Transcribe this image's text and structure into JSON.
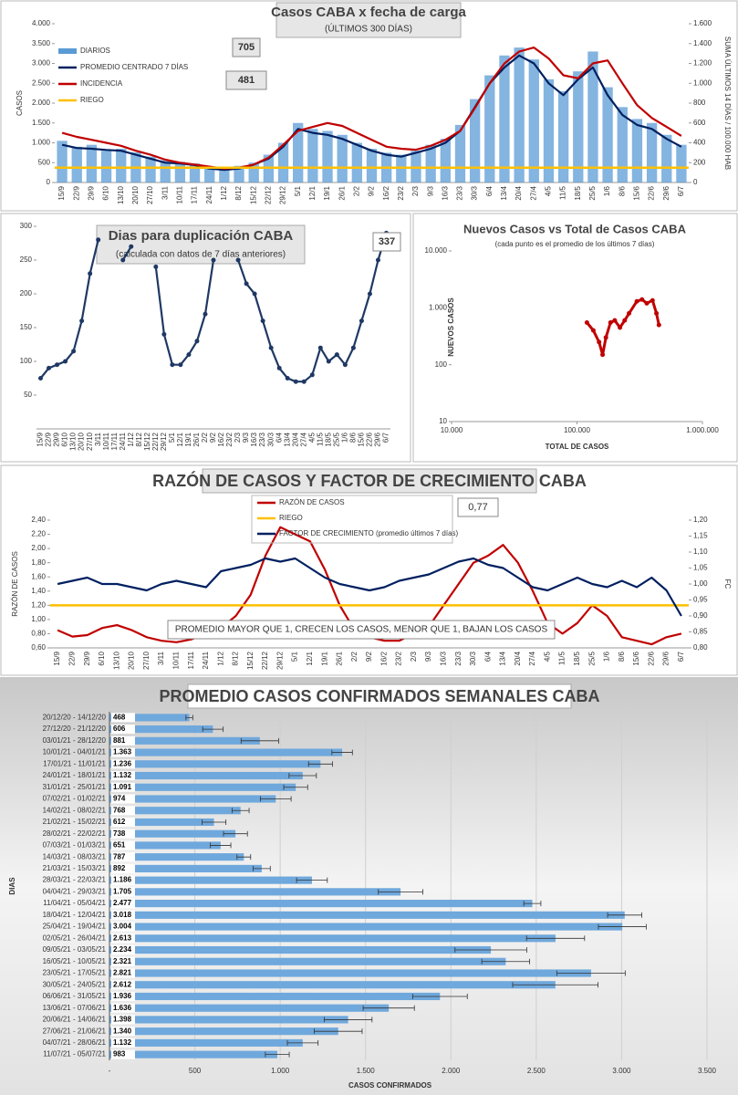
{
  "chart_data": [
    {
      "type": "bar-line",
      "title": "Casos CABA x fecha de carga",
      "subtitle": "(ÚLTIMOS 300 DÍAS)",
      "ylabel": "CASOS",
      "y2label": "SUMA ÚLTIMOS 14 DÍAS / 100.000 HAB",
      "categories": [
        "15/9",
        "22/9",
        "29/9",
        "6/10",
        "13/10",
        "20/10",
        "27/10",
        "3/11",
        "10/11",
        "17/11",
        "24/11",
        "1/12",
        "8/12",
        "15/12",
        "22/12",
        "29/12",
        "5/1",
        "12/1",
        "19/1",
        "26/1",
        "2/2",
        "9/2",
        "16/2",
        "23/2",
        "2/3",
        "9/3",
        "16/3",
        "23/3",
        "30/3",
        "6/4",
        "13/4",
        "20/4",
        "27/4",
        "4/5",
        "11/5",
        "18/5",
        "25/5",
        "1/6",
        "8/6",
        "15/6",
        "22/6",
        "29/6",
        "6/7"
      ],
      "series": [
        {
          "name": "DIARIOS",
          "color": "#5b9bd5",
          "type": "bar",
          "values": [
            1050,
            900,
            950,
            800,
            850,
            760,
            650,
            560,
            520,
            480,
            380,
            350,
            420,
            500,
            700,
            1000,
            1500,
            1350,
            1300,
            1200,
            1000,
            850,
            750,
            700,
            800,
            950,
            1100,
            1450,
            2100,
            2700,
            3200,
            3400,
            3100,
            2600,
            2300,
            2800,
            3300,
            2400,
            1900,
            1600,
            1500,
            1200,
            950
          ]
        },
        {
          "name": "PROMEDIO CENTRADO 7 DÍAS",
          "color": "#002060",
          "type": "line",
          "values": [
            950,
            870,
            850,
            820,
            800,
            700,
            600,
            500,
            480,
            440,
            350,
            320,
            350,
            450,
            600,
            900,
            1350,
            1250,
            1200,
            1100,
            950,
            800,
            700,
            650,
            750,
            850,
            1000,
            1300,
            1900,
            2500,
            2900,
            3200,
            3000,
            2500,
            2200,
            2600,
            2900,
            2200,
            1700,
            1450,
            1350,
            1100,
            900
          ]
        },
        {
          "name": "INCIDENCIA",
          "color": "#c00000",
          "type": "line",
          "axis": "y2",
          "values": [
            500,
            460,
            430,
            400,
            370,
            320,
            280,
            230,
            200,
            180,
            160,
            140,
            150,
            180,
            250,
            380,
            520,
            560,
            600,
            570,
            500,
            430,
            360,
            340,
            330,
            370,
            430,
            520,
            750,
            1000,
            1200,
            1320,
            1360,
            1250,
            1080,
            1050,
            1200,
            1230,
            1000,
            780,
            650,
            560,
            470
          ]
        },
        {
          "name": "RIEGO",
          "color": "#ffc000",
          "axis": "y2",
          "value": 150
        }
      ],
      "ylim": [
        0,
        4000
      ],
      "yticks": [
        0,
        500,
        {
          "value": 1000,
          "label": "1.000"
        },
        {
          "value": 1500,
          "label": "1.500"
        },
        {
          "value": 2000,
          "label": "2.000"
        },
        {
          "value": 2500,
          "label": "2.500"
        },
        {
          "value": 3000,
          "label": "3.000"
        },
        {
          "value": 3500,
          "label": "3.500"
        },
        {
          "value": 4000,
          "label": "4.000"
        }
      ],
      "y2lim": [
        0,
        1600
      ],
      "y2ticks": [
        0,
        200,
        400,
        600,
        800,
        {
          "value": 1000,
          "label": "1.000"
        },
        {
          "value": 1200,
          "label": "1.200"
        },
        {
          "value": 1400,
          "label": "1.400"
        },
        {
          "value": 1600,
          "label": "1.600"
        }
      ],
      "annotations": [
        "705",
        "481"
      ]
    },
    {
      "type": "line",
      "title": "Dias para duplicación CABA",
      "subtitle": "(calculada con datos de 7 días anteriores)",
      "categories": [
        "15/9",
        "22/9",
        "29/9",
        "6/10",
        "13/10",
        "20/10",
        "27/10",
        "3/11",
        "10/11",
        "17/11",
        "24/11",
        "1/12",
        "8/12",
        "15/12",
        "22/12",
        "29/12",
        "5/1",
        "12/1",
        "19/1",
        "26/1",
        "2/2",
        "9/2",
        "16/2",
        "23/2",
        "2/3",
        "9/3",
        "16/3",
        "23/3",
        "30/3",
        "6/4",
        "13/4",
        "20/4",
        "27/4",
        "4/5",
        "11/5",
        "18/5",
        "25/5",
        "1/6",
        "8/6",
        "15/6",
        "22/6",
        "29/6",
        "6/7"
      ],
      "series": [
        {
          "color": "#1f3864",
          "markers": true,
          "values": [
            75,
            90,
            95,
            100,
            115,
            160,
            230,
            280,
            null,
            null,
            250,
            270,
            null,
            null,
            240,
            140,
            95,
            95,
            110,
            130,
            170,
            250,
            null,
            null,
            250,
            215,
            200,
            160,
            120,
            90,
            75,
            70,
            70,
            80,
            120,
            100,
            110,
            95,
            120,
            160,
            200,
            250,
            290
          ]
        }
      ],
      "ylim": [
        0,
        300
      ],
      "yticks": [
        50,
        100,
        150,
        200,
        250,
        300
      ],
      "annotations": [
        "337"
      ]
    },
    {
      "type": "scatter",
      "title": "Nuevos Casos vs Total de Casos CABA",
      "subtitle": "(cada punto es el promedio de los últimos 7 días)",
      "xlabel": "TOTAL DE CASOS",
      "ylabel": "NUEVOS CASOS",
      "color": "#c00000",
      "x": [
        120000,
        135000,
        150000,
        160000,
        170000,
        185000,
        200000,
        220000,
        240000,
        260000,
        300000,
        330000,
        360000,
        400000,
        430000,
        450000
      ],
      "y": [
        550,
        400,
        250,
        150,
        300,
        550,
        600,
        450,
        600,
        800,
        1300,
        1400,
        1200,
        1350,
        800,
        500
      ],
      "log_x": true,
      "log_y": true,
      "xlim": [
        10000,
        1000000
      ],
      "ylim": [
        10,
        10000
      ],
      "xticks": [
        {
          "value": 10000,
          "label": "10.000"
        },
        {
          "value": 100000,
          "label": "100.000"
        },
        {
          "value": 1000000,
          "label": "1.000.000"
        }
      ],
      "yticks": [
        10,
        100,
        {
          "value": 1000,
          "label": "1.000"
        },
        {
          "value": 10000,
          "label": "10.000"
        }
      ]
    },
    {
      "type": "line",
      "title": "RAZÓN DE CASOS Y FACTOR DE CRECIMIENTO CABA",
      "ylabel": "RAZÓN DE CASOS",
      "y2label": "FC",
      "categories": [
        "15/9",
        "22/9",
        "29/9",
        "6/10",
        "13/10",
        "20/10",
        "27/10",
        "3/11",
        "10/11",
        "17/11",
        "24/11",
        "1/12",
        "8/12",
        "15/12",
        "22/12",
        "29/12",
        "5/1",
        "12/1",
        "19/1",
        "26/1",
        "2/2",
        "9/2",
        "16/2",
        "23/2",
        "2/3",
        "9/3",
        "16/3",
        "23/3",
        "30/3",
        "6/4",
        "13/4",
        "20/4",
        "27/4",
        "4/5",
        "11/5",
        "18/5",
        "25/5",
        "1/6",
        "8/6",
        "15/6",
        "22/6",
        "29/6",
        "6/7"
      ],
      "series": [
        {
          "name": "RAZÓN DE CASOS",
          "color": "#c00000",
          "values": [
            0.85,
            0.76,
            0.78,
            0.88,
            0.92,
            0.85,
            0.75,
            0.7,
            0.68,
            0.72,
            0.8,
            0.88,
            1.05,
            1.35,
            1.9,
            2.3,
            2.2,
            2.1,
            1.7,
            1.2,
            0.85,
            0.75,
            0.7,
            0.7,
            0.8,
            0.9,
            1.2,
            1.5,
            1.8,
            1.9,
            2.05,
            1.8,
            1.4,
            0.95,
            0.8,
            0.95,
            1.2,
            1.05,
            0.75,
            0.7,
            0.65,
            0.75,
            0.8
          ]
        },
        {
          "name": "RIEGO",
          "color": "#ffc000",
          "value": 1.2
        },
        {
          "name": "FACTOR DE CRECIMIENTO (promedio últimos 7 días)",
          "color": "#002060",
          "axis": "y2",
          "values": [
            1.0,
            1.01,
            1.02,
            1.0,
            1.0,
            0.99,
            0.98,
            1.0,
            1.01,
            1.0,
            0.99,
            1.04,
            1.05,
            1.06,
            1.08,
            1.07,
            1.08,
            1.05,
            1.02,
            1.0,
            0.99,
            0.98,
            0.99,
            1.01,
            1.02,
            1.03,
            1.05,
            1.07,
            1.08,
            1.06,
            1.05,
            1.02,
            0.99,
            0.98,
            1.0,
            1.02,
            1.0,
            0.99,
            1.01,
            0.99,
            1.02,
            0.98,
            0.9
          ]
        }
      ],
      "ylim": [
        0.6,
        2.4
      ],
      "yticks": [
        {
          "value": 0.6,
          "label": "0,60"
        },
        {
          "value": 0.8,
          "label": "0,80"
        },
        {
          "value": 1.0,
          "label": "1,00"
        },
        {
          "value": 1.2,
          "label": "1,20"
        },
        {
          "value": 1.4,
          "label": "1,40"
        },
        {
          "value": 1.6,
          "label": "1,60"
        },
        {
          "value": 1.8,
          "label": "1,80"
        },
        {
          "value": 2.0,
          "label": "2,00"
        },
        {
          "value": 2.2,
          "label": "2,20"
        },
        {
          "value": 2.4,
          "label": "2,40"
        }
      ],
      "y2lim": [
        0.8,
        1.2
      ],
      "y2ticks": [
        {
          "value": 0.8,
          "label": "0,80"
        },
        {
          "value": 0.85,
          "label": "0,85"
        },
        {
          "value": 0.9,
          "label": "0,90"
        },
        {
          "value": 0.95,
          "label": "0,95"
        },
        {
          "value": 1.0,
          "label": "1,00"
        },
        {
          "value": 1.05,
          "label": "1,05"
        },
        {
          "value": 1.1,
          "label": "1,10"
        },
        {
          "value": 1.15,
          "label": "1,15"
        },
        {
          "value": 1.2,
          "label": "1,20"
        }
      ],
      "annotations": [
        "0,77",
        "PROMEDIO MAYOR QUE 1, CRECEN LOS CASOS, MENOR QUE 1, BAJAN LOS CASOS"
      ]
    },
    {
      "type": "hbar",
      "title": "PROMEDIO CASOS CONFIRMADOS SEMANALES CABA",
      "xlabel": "CASOS CONFIRMADOS",
      "ylabel": "DIAS",
      "color": "#6fa8dc",
      "grid": true,
      "categories": [
        "20/12/20 - 14/12/20",
        "27/12/20 - 21/12/20",
        "03/01/21 - 28/12/20",
        "10/01/21 - 04/01/21",
        "17/01/21 - 11/01/21",
        "24/01/21 - 18/01/21",
        "31/01/21 - 25/01/21",
        "07/02/21 - 01/02/21",
        "14/02/21 - 08/02/21",
        "21/02/21 - 15/02/21",
        "28/02/21 - 22/02/21",
        "07/03/21 - 01/03/21",
        "14/03/21 - 08/03/21",
        "21/03/21 - 15/03/21",
        "28/03/21 - 22/03/21",
        "04/04/21 - 29/03/21",
        "11/04/21 - 05/04/21",
        "18/04/21 - 12/04/21",
        "25/04/21 - 19/04/21",
        "02/05/21 - 26/04/21",
        "09/05/21 - 03/05/21",
        "16/05/21 - 10/05/21",
        "23/05/21 - 17/05/21",
        "30/05/21 - 24/05/21",
        "06/06/21 - 31/05/21",
        "13/06/21 - 07/06/21",
        "20/06/21 - 14/06/21",
        "27/06/21 - 21/06/21",
        "04/07/21 - 28/06/21",
        "11/07/21 - 05/07/21"
      ],
      "values": [
        468,
        606,
        881,
        1363,
        1236,
        1132,
        1091,
        974,
        768,
        612,
        738,
        651,
        787,
        892,
        1186,
        1705,
        2477,
        3018,
        3004,
        2613,
        2234,
        2321,
        2821,
        2612,
        1936,
        1636,
        1398,
        1340,
        1132,
        983
      ],
      "value_labels": [
        "468",
        "606",
        "881",
        "1.363",
        "1.236",
        "1.132",
        "1.091",
        "974",
        "768",
        "612",
        "738",
        "651",
        "787",
        "892",
        "1.186",
        "1.705",
        "2.477",
        "3.018",
        "3.004",
        "2.613",
        "2.234",
        "2.321",
        "2.821",
        "2.612",
        "1.936",
        "1.636",
        "1.398",
        "1.340",
        "1.132",
        "983"
      ],
      "errors": [
        20,
        60,
        110,
        60,
        70,
        80,
        70,
        90,
        50,
        70,
        70,
        60,
        40,
        50,
        90,
        130,
        50,
        100,
        140,
        170,
        210,
        140,
        200,
        250,
        160,
        150,
        140,
        140,
        90,
        70
      ],
      "xlim": [
        0,
        3500
      ],
      "xticks": [
        {
          "value": 0,
          "label": "-"
        },
        500,
        {
          "value": 1000,
          "label": "1.000"
        },
        {
          "value": 1500,
          "label": "1.500"
        },
        {
          "value": 2000,
          "label": "2.000"
        },
        {
          "value": 2500,
          "label": "2.500"
        },
        {
          "value": 3000,
          "label": "3.000"
        },
        {
          "value": 3500,
          "label": "3.500"
        }
      ]
    }
  ]
}
